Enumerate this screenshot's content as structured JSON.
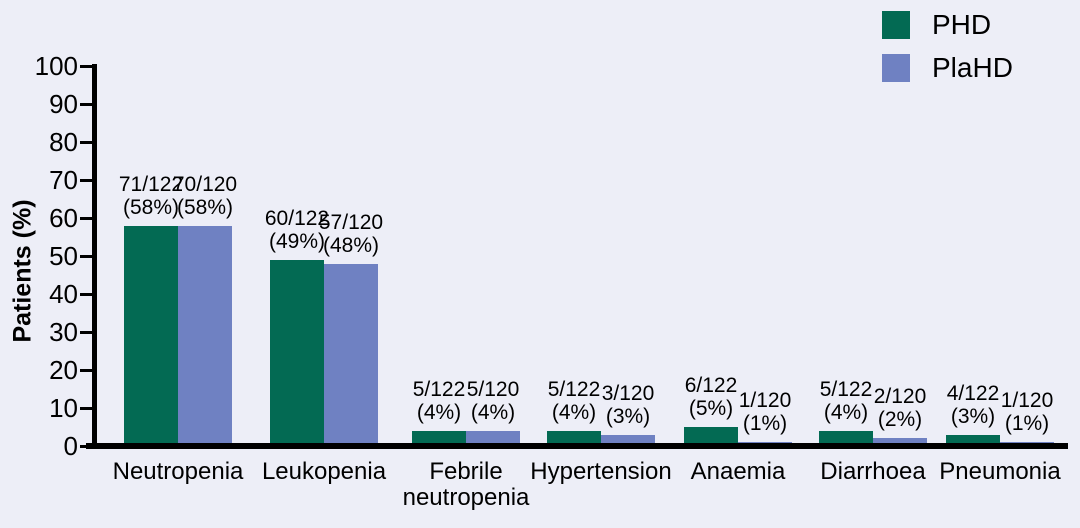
{
  "figure": {
    "background": "#EDEEF7",
    "axis_color": "#000000"
  },
  "chart_data": {
    "type": "bar",
    "title": "",
    "xlabel": "",
    "ylabel": "Patients (%)",
    "ylim": [
      0,
      100
    ],
    "yticks": [
      0,
      10,
      20,
      30,
      40,
      50,
      60,
      70,
      80,
      90,
      100
    ],
    "grid": false,
    "legend_position": "top-right",
    "categories": [
      "Neutropenia",
      "Leukopenia",
      "Febrile neutropenia",
      "Hypertension",
      "Anaemia",
      "Diarrhoea",
      "Pneumonia"
    ],
    "series": [
      {
        "name": "PHD",
        "color": "#036A53",
        "denominator": 122,
        "numerators": [
          71,
          60,
          5,
          5,
          6,
          5,
          4
        ],
        "values_pct": [
          58,
          49,
          4,
          4,
          5,
          4,
          3
        ],
        "annotations": [
          [
            "71/122",
            "(58%)"
          ],
          [
            "60/122",
            "(49%)"
          ],
          [
            "5/122",
            "(4%)"
          ],
          [
            "5/122",
            "(4%)"
          ],
          [
            "6/122",
            "(5%)"
          ],
          [
            "5/122",
            "(4%)"
          ],
          [
            "4/122",
            "(3%)"
          ]
        ]
      },
      {
        "name": "PlaHD",
        "color": "#6F81C2",
        "denominator": 120,
        "numerators": [
          70,
          57,
          5,
          3,
          1,
          2,
          1
        ],
        "values_pct": [
          58,
          48,
          4,
          3,
          1,
          2,
          1
        ],
        "annotations": [
          [
            "70/120",
            "(58%)"
          ],
          [
            "57/120",
            "(48%)"
          ],
          [
            "5/120",
            "(4%)"
          ],
          [
            "3/120",
            "(3%)"
          ],
          [
            "1/120",
            "(1%)"
          ],
          [
            "2/120",
            "(2%)"
          ],
          [
            "1/120",
            "(1%)"
          ]
        ]
      }
    ]
  }
}
